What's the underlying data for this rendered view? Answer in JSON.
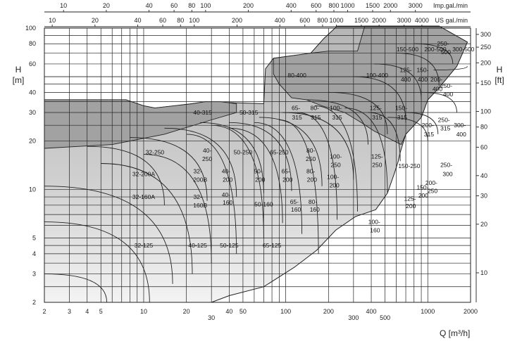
{
  "chart_data": {
    "type": "area",
    "title": "",
    "xlabel": "Q [m³/h]",
    "ylabel_left": "H [m]",
    "ylabel_right": "H [ft]",
    "top_axis_1_label": "Imp.gal./min",
    "top_axis_2_label": "US gal./min",
    "x_scale": "log",
    "y_scale": "log",
    "xlim": [
      2,
      2000
    ],
    "ylim": [
      2,
      100
    ],
    "grid": true,
    "x_ticks": [
      {
        "v": 2,
        "t": "2"
      },
      {
        "v": 3,
        "t": "3"
      },
      {
        "v": 4,
        "t": "4"
      },
      {
        "v": 5,
        "t": "5"
      },
      {
        "v": 10,
        "t": "10"
      },
      {
        "v": 20,
        "t": "20"
      },
      {
        "v": 30,
        "t": "30"
      },
      {
        "v": 40,
        "t": "40"
      },
      {
        "v": 50,
        "t": "50"
      },
      {
        "v": 100,
        "t": "100"
      },
      {
        "v": 200,
        "t": "200"
      },
      {
        "v": 300,
        "t": "300"
      },
      {
        "v": 400,
        "t": "400"
      },
      {
        "v": 500,
        "t": "500"
      },
      {
        "v": 1000,
        "t": "1000"
      },
      {
        "v": 2000,
        "t": "2000"
      }
    ],
    "y_ticks": [
      {
        "v": 2,
        "t": "2"
      },
      {
        "v": 3,
        "t": "3"
      },
      {
        "v": 4,
        "t": "4"
      },
      {
        "v": 5,
        "t": "5"
      },
      {
        "v": 10,
        "t": "10"
      },
      {
        "v": 20,
        "t": "20"
      },
      {
        "v": 30,
        "t": "30"
      },
      {
        "v": 40,
        "t": "40"
      },
      {
        "v": 60,
        "t": "60"
      },
      {
        "v": 80,
        "t": "80"
      },
      {
        "v": 100,
        "t": "100"
      }
    ],
    "y_ft_ticks": [
      {
        "v": 10,
        "t": "10"
      },
      {
        "v": 20,
        "t": "20"
      },
      {
        "v": 30,
        "t": "30"
      },
      {
        "v": 40,
        "t": "40"
      },
      {
        "v": 60,
        "t": "60"
      },
      {
        "v": 80,
        "t": "80"
      },
      {
        "v": 100,
        "t": "100"
      },
      {
        "v": 150,
        "t": "150"
      },
      {
        "v": 200,
        "t": "200"
      },
      {
        "v": 250,
        "t": "250"
      },
      {
        "v": 300,
        "t": "300"
      }
    ],
    "imp_gal_ticks": [
      {
        "v": 10,
        "t": "10"
      },
      {
        "v": 20,
        "t": "20"
      },
      {
        "v": 40,
        "t": "40"
      },
      {
        "v": 60,
        "t": "60"
      },
      {
        "v": 80,
        "t": "80"
      },
      {
        "v": 100,
        "t": "100"
      },
      {
        "v": 200,
        "t": "200"
      },
      {
        "v": 400,
        "t": "400"
      },
      {
        "v": 600,
        "t": "600"
      },
      {
        "v": 800,
        "t": "800"
      },
      {
        "v": 1000,
        "t": "1000"
      },
      {
        "v": 1500,
        "t": "1500"
      },
      {
        "v": 2000,
        "t": "2000"
      },
      {
        "v": 3000,
        "t": "3000"
      }
    ],
    "us_gal_ticks": [
      {
        "v": 10,
        "t": "10"
      },
      {
        "v": 20,
        "t": "20"
      },
      {
        "v": 40,
        "t": "40"
      },
      {
        "v": 60,
        "t": "60"
      },
      {
        "v": 80,
        "t": "80"
      },
      {
        "v": 100,
        "t": "100"
      },
      {
        "v": 200,
        "t": "200"
      },
      {
        "v": 400,
        "t": "400"
      },
      {
        "v": 600,
        "t": "600"
      },
      {
        "v": 800,
        "t": "800"
      },
      {
        "v": 1000,
        "t": "1000"
      },
      {
        "v": 1500,
        "t": "1500"
      },
      {
        "v": 2000,
        "t": "2000"
      },
      {
        "v": 3000,
        "t": "3000"
      },
      {
        "v": 4000,
        "t": "4000"
      }
    ],
    "envelope": [
      {
        "q": 2,
        "h": 36
      },
      {
        "q": 7.5,
        "h": 36
      },
      {
        "q": 10,
        "h": 33
      },
      {
        "q": 12,
        "h": 32
      },
      {
        "q": 22,
        "h": 34
      },
      {
        "q": 27,
        "h": 35
      },
      {
        "q": 70,
        "h": 34
      },
      {
        "q": 72,
        "h": 56
      },
      {
        "q": 82,
        "h": 65
      },
      {
        "q": 150,
        "h": 70
      },
      {
        "q": 185,
        "h": 86
      },
      {
        "q": 230,
        "h": 103
      },
      {
        "q": 1200,
        "h": 103
      },
      {
        "q": 1900,
        "h": 82
      },
      {
        "q": 1600,
        "h": 58
      },
      {
        "q": 1180,
        "h": 42
      },
      {
        "q": 1000,
        "h": 36
      },
      {
        "q": 900,
        "h": 28
      },
      {
        "q": 700,
        "h": 22
      },
      {
        "q": 640,
        "h": 17
      },
      {
        "q": 620,
        "h": 15
      },
      {
        "q": 580,
        "h": 12.5
      },
      {
        "q": 520,
        "h": 9.5
      },
      {
        "q": 430,
        "h": 7.5
      },
      {
        "q": 310,
        "h": 6.8
      },
      {
        "q": 225,
        "h": 5.6
      },
      {
        "q": 165,
        "h": 4.2
      },
      {
        "q": 115,
        "h": 3.3
      },
      {
        "q": 70,
        "h": 2.5
      },
      {
        "q": 40,
        "h": 2.2
      },
      {
        "q": 30,
        "h": 2.0
      },
      {
        "q": 2,
        "h": 2.0
      }
    ],
    "dark_zones": [
      {
        "name": "top-band",
        "points": [
          {
            "q": 150,
            "h": 70
          },
          {
            "q": 200,
            "h": 72
          },
          {
            "q": 320,
            "h": 72
          },
          {
            "q": 360,
            "h": 103
          },
          {
            "q": 1200,
            "h": 103
          },
          {
            "q": 1900,
            "h": 82
          },
          {
            "q": 1600,
            "h": 58
          },
          {
            "q": 1180,
            "h": 42
          },
          {
            "q": 1000,
            "h": 36
          },
          {
            "q": 900,
            "h": 28
          },
          {
            "q": 700,
            "h": 22
          },
          {
            "q": 650,
            "h": 19
          },
          {
            "q": 420,
            "h": 23
          },
          {
            "q": 340,
            "h": 26
          },
          {
            "q": 260,
            "h": 30
          },
          {
            "q": 180,
            "h": 33
          },
          {
            "q": 140,
            "h": 36
          },
          {
            "q": 110,
            "h": 37
          },
          {
            "q": 90,
            "h": 45
          },
          {
            "q": 82,
            "h": 52
          },
          {
            "q": 82,
            "h": 65
          }
        ]
      },
      {
        "name": "left-band",
        "points": [
          {
            "q": 2,
            "h": 36
          },
          {
            "q": 7.5,
            "h": 36
          },
          {
            "q": 10,
            "h": 33
          },
          {
            "q": 12,
            "h": 32
          },
          {
            "q": 22,
            "h": 34
          },
          {
            "q": 27,
            "h": 35
          },
          {
            "q": 35,
            "h": 35
          },
          {
            "q": 45,
            "h": 34
          },
          {
            "q": 45,
            "h": 30
          },
          {
            "q": 30,
            "h": 27
          },
          {
            "q": 14,
            "h": 22
          },
          {
            "q": 6,
            "h": 19
          },
          {
            "q": 2,
            "h": 18
          }
        ]
      }
    ],
    "pump_zones": [
      {
        "label": "150-500",
        "q": 720,
        "h": 74
      },
      {
        "label": "200-500",
        "q": 1130,
        "h": 74
      },
      {
        "label": "250-",
        "q": 1280,
        "h": 80
      },
      {
        "label": "500",
        "q": 1340,
        "h": 71
      },
      {
        "label": "300-500",
        "q": 1780,
        "h": 74
      },
      {
        "label": "80-400",
        "q": 120,
        "h": 51
      },
      {
        "label": "100-400",
        "q": 440,
        "h": 51
      },
      {
        "label": "125-",
        "q": 700,
        "h": 55
      },
      {
        "label": "400",
        "q": 700,
        "h": 48
      },
      {
        "label": "150-",
        "q": 920,
        "h": 55
      },
      {
        "label": "400",
        "q": 920,
        "h": 48
      },
      {
        "label": "200-",
        "q": 1150,
        "h": 48
      },
      {
        "label": "400",
        "q": 1170,
        "h": 42
      },
      {
        "label": "250-",
        "q": 1350,
        "h": 44
      },
      {
        "label": "400",
        "q": 1390,
        "h": 39
      },
      {
        "label": "40-315",
        "q": 26,
        "h": 30
      },
      {
        "label": "50-315",
        "q": 55,
        "h": 30
      },
      {
        "label": "65-",
        "q": 118,
        "h": 32
      },
      {
        "label": "315",
        "q": 120,
        "h": 28
      },
      {
        "label": "80-",
        "q": 160,
        "h": 32
      },
      {
        "label": "315",
        "q": 163,
        "h": 28
      },
      {
        "label": "100-",
        "q": 225,
        "h": 32
      },
      {
        "label": "315",
        "q": 230,
        "h": 28
      },
      {
        "label": "125-",
        "q": 430,
        "h": 32
      },
      {
        "label": "315",
        "q": 440,
        "h": 28
      },
      {
        "label": "150-",
        "q": 650,
        "h": 32
      },
      {
        "label": "315",
        "q": 660,
        "h": 28
      },
      {
        "label": "200-",
        "q": 1000,
        "h": 25
      },
      {
        "label": "315",
        "q": 1020,
        "h": 22
      },
      {
        "label": "250-",
        "q": 1300,
        "h": 27
      },
      {
        "label": "315",
        "q": 1330,
        "h": 24
      },
      {
        "label": "300-",
        "q": 1680,
        "h": 25
      },
      {
        "label": "400",
        "q": 1720,
        "h": 22
      },
      {
        "label": "32-250",
        "q": 12,
        "h": 17
      },
      {
        "label": "40-",
        "q": 28,
        "h": 17.5
      },
      {
        "label": "250",
        "q": 28,
        "h": 15.5
      },
      {
        "label": "50-250",
        "q": 50,
        "h": 17
      },
      {
        "label": "65-250",
        "q": 90,
        "h": 17
      },
      {
        "label": "80-",
        "q": 150,
        "h": 17.5
      },
      {
        "label": "250",
        "q": 150,
        "h": 15.5
      },
      {
        "label": "100-",
        "q": 225,
        "h": 16
      },
      {
        "label": "250",
        "q": 225,
        "h": 14.2
      },
      {
        "label": "125-",
        "q": 440,
        "h": 16
      },
      {
        "label": "250",
        "q": 440,
        "h": 14.2
      },
      {
        "label": "150-250",
        "q": 740,
        "h": 14
      },
      {
        "label": "250-",
        "q": 1350,
        "h": 14.2
      },
      {
        "label": "300",
        "q": 1380,
        "h": 12.5
      },
      {
        "label": "32-200A",
        "q": 10,
        "h": 12.5
      },
      {
        "label": "32-",
        "q": 24,
        "h": 13
      },
      {
        "label": "200B",
        "q": 25,
        "h": 11.5
      },
      {
        "label": "40-",
        "q": 38,
        "h": 13
      },
      {
        "label": "200",
        "q": 39,
        "h": 11.5
      },
      {
        "label": "50-",
        "q": 64,
        "h": 13
      },
      {
        "label": "200",
        "q": 66,
        "h": 11.5
      },
      {
        "label": "65-",
        "q": 100,
        "h": 13
      },
      {
        "label": "200",
        "q": 103,
        "h": 11.5
      },
      {
        "label": "80-",
        "q": 150,
        "h": 13
      },
      {
        "label": "200",
        "q": 153,
        "h": 11.5
      },
      {
        "label": "100-",
        "q": 215,
        "h": 12
      },
      {
        "label": "200",
        "q": 220,
        "h": 10.6
      },
      {
        "label": "150-",
        "q": 920,
        "h": 10.3
      },
      {
        "label": "200",
        "q": 930,
        "h": 9.2
      },
      {
        "label": "200-",
        "q": 1060,
        "h": 11
      },
      {
        "label": "250",
        "q": 1080,
        "h": 9.8
      },
      {
        "label": "125-",
        "q": 750,
        "h": 8.8
      },
      {
        "label": "200",
        "q": 760,
        "h": 7.9
      },
      {
        "label": "32-160A",
        "q": 10,
        "h": 9
      },
      {
        "label": "32-",
        "q": 24,
        "h": 9
      },
      {
        "label": "160B",
        "q": 25,
        "h": 8
      },
      {
        "label": "40-",
        "q": 38,
        "h": 9.3
      },
      {
        "label": "160",
        "q": 39,
        "h": 8.3
      },
      {
        "label": "50-160",
        "q": 70,
        "h": 8.1
      },
      {
        "label": "65-",
        "q": 115,
        "h": 8.4
      },
      {
        "label": "160",
        "q": 118,
        "h": 7.5
      },
      {
        "label": "80-",
        "q": 155,
        "h": 8.4
      },
      {
        "label": "160",
        "q": 160,
        "h": 7.5
      },
      {
        "label": "100-",
        "q": 420,
        "h": 6.3
      },
      {
        "label": "160",
        "q": 425,
        "h": 5.6
      },
      {
        "label": "32-125",
        "q": 10,
        "h": 4.5
      },
      {
        "label": "40-125",
        "q": 24,
        "h": 4.5
      },
      {
        "label": "50-125",
        "q": 40,
        "h": 4.5
      },
      {
        "label": "65-125",
        "q": 80,
        "h": 4.5
      }
    ]
  }
}
